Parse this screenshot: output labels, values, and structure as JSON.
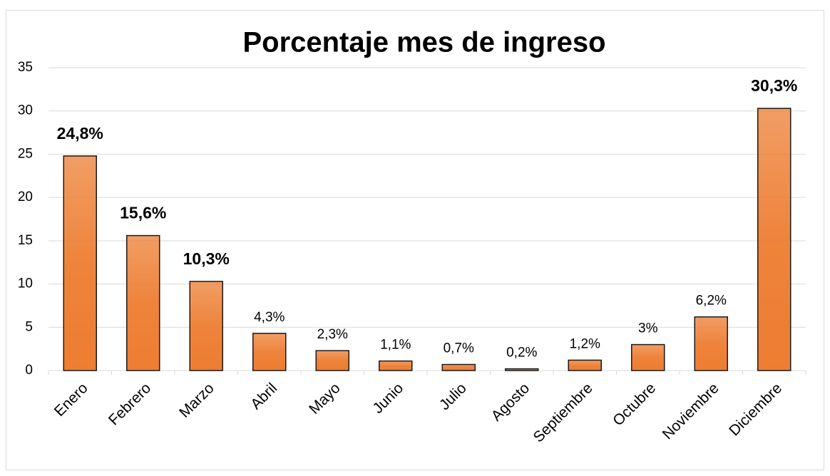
{
  "chart_data": {
    "type": "bar",
    "title": "Porcentaje mes de ingreso",
    "categories": [
      "Enero",
      "Febrero",
      "Marzo",
      "Abril",
      "Mayo",
      "Junio",
      "Julio",
      "Agosto",
      "Septiembre",
      "Octubre",
      "Noviembre",
      "Diciembre"
    ],
    "values": [
      24.8,
      15.6,
      10.3,
      4.3,
      2.3,
      1.1,
      0.7,
      0.2,
      1.2,
      3,
      6.2,
      30.3
    ],
    "value_labels": [
      "24,8%",
      "15,6%",
      "10,3%",
      "4,3%",
      "2,3%",
      "1,1%",
      "0,7%",
      "0,2%",
      "1,2%",
      "3%",
      "6,2%",
      "30,3%"
    ],
    "color": "#ed7d31",
    "ylim": [
      0,
      35
    ],
    "yticks": [
      0,
      5,
      10,
      15,
      20,
      25,
      30,
      35
    ],
    "grid": true
  }
}
